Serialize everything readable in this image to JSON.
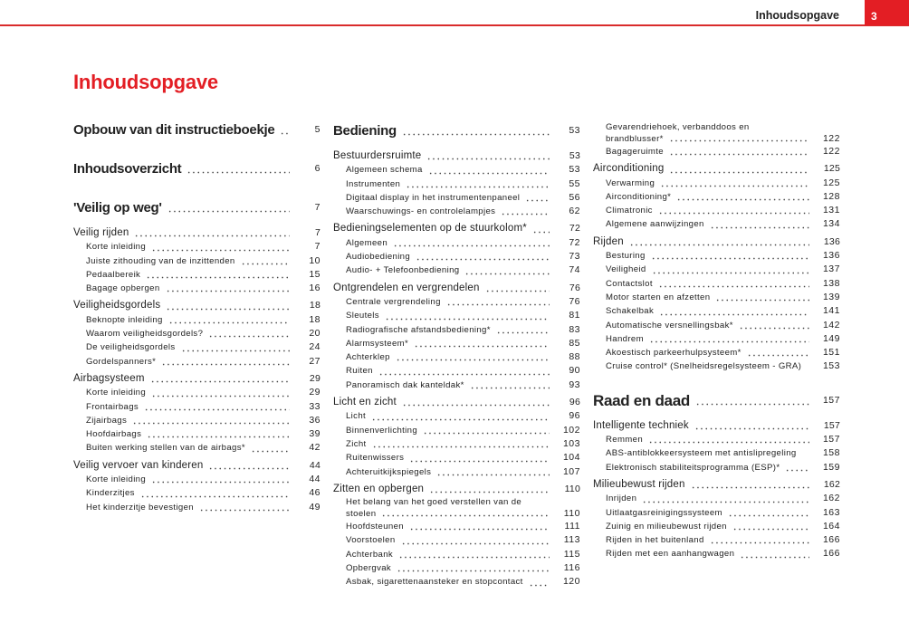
{
  "header": {
    "title": "Inhoudsopgave",
    "page_number": "3",
    "accent_color": "#e31e24"
  },
  "page_title": "Inhoudsopgave",
  "columns": [
    [
      {
        "lvl": "major",
        "t": "Opbouw van dit instructieboekje",
        "p": "5"
      },
      {
        "lvl": "major",
        "t": "Inhoudsoverzicht",
        "p": "6"
      },
      {
        "lvl": "major",
        "t": "'Veilig op weg'",
        "p": "7"
      },
      {
        "lvl": "section",
        "t": "Veilig rijden",
        "p": "7"
      },
      {
        "lvl": "item",
        "t": "Korte inleiding",
        "p": "7"
      },
      {
        "lvl": "item",
        "t": "Juiste zithouding van de inzittenden",
        "p": "10"
      },
      {
        "lvl": "item",
        "t": "Pedaalbereik",
        "p": "15"
      },
      {
        "lvl": "item",
        "t": "Bagage opbergen",
        "p": "16"
      },
      {
        "lvl": "section",
        "t": "Veiligheidsgordels",
        "p": "18"
      },
      {
        "lvl": "item",
        "t": "Beknopte inleiding",
        "p": "18"
      },
      {
        "lvl": "item",
        "t": "Waarom veiligheidsgordels?",
        "p": "20"
      },
      {
        "lvl": "item",
        "t": "De veiligheidsgordels",
        "p": "24"
      },
      {
        "lvl": "item",
        "t": "Gordelspanners*",
        "p": "27"
      },
      {
        "lvl": "section",
        "t": "Airbagsysteem",
        "p": "29"
      },
      {
        "lvl": "item",
        "t": "Korte inleiding",
        "p": "29"
      },
      {
        "lvl": "item",
        "t": "Frontairbags",
        "p": "33"
      },
      {
        "lvl": "item",
        "t": "Zijairbags",
        "p": "36"
      },
      {
        "lvl": "item",
        "t": "Hoofdairbags",
        "p": "39"
      },
      {
        "lvl": "item",
        "t": "Buiten werking stellen van de airbags*",
        "p": "42"
      },
      {
        "lvl": "section",
        "t": "Veilig vervoer van kinderen",
        "p": "44"
      },
      {
        "lvl": "item",
        "t": "Korte inleiding",
        "p": "44"
      },
      {
        "lvl": "item",
        "t": "Kinderzitjes",
        "p": "46"
      },
      {
        "lvl": "item",
        "t": "Het kinderzitje bevestigen",
        "p": "49"
      }
    ],
    [
      {
        "lvl": "major",
        "t": "Bediening",
        "p": "53"
      },
      {
        "lvl": "section",
        "t": "Bestuurdersruimte",
        "p": "53"
      },
      {
        "lvl": "item",
        "t": "Algemeen schema",
        "p": "53"
      },
      {
        "lvl": "item",
        "t": "Instrumenten",
        "p": "55"
      },
      {
        "lvl": "item",
        "t": "Digitaal display in het instrumentenpaneel",
        "p": "56"
      },
      {
        "lvl": "item",
        "t": "Waarschuwings- en controlelampjes",
        "p": "62"
      },
      {
        "lvl": "section",
        "t": "Bedieningselementen op de stuurkolom*",
        "p": "72"
      },
      {
        "lvl": "item",
        "t": "Algemeen",
        "p": "72"
      },
      {
        "lvl": "item",
        "t": "Audiobediening",
        "p": "73"
      },
      {
        "lvl": "item",
        "t": "Audio- + Telefoonbediening",
        "p": "74"
      },
      {
        "lvl": "section",
        "t": "Ontgrendelen en vergrendelen",
        "p": "76"
      },
      {
        "lvl": "item",
        "t": "Centrale vergrendeling",
        "p": "76"
      },
      {
        "lvl": "item",
        "t": "Sleutels",
        "p": "81"
      },
      {
        "lvl": "item",
        "t": "Radiografische afstandsbediening*",
        "p": "83"
      },
      {
        "lvl": "item",
        "t": "Alarmsysteem*",
        "p": "85"
      },
      {
        "lvl": "item",
        "t": "Achterklep",
        "p": "88"
      },
      {
        "lvl": "item",
        "t": "Ruiten",
        "p": "90"
      },
      {
        "lvl": "item",
        "t": "Panoramisch dak kanteldak*",
        "p": "93"
      },
      {
        "lvl": "section",
        "t": "Licht en zicht",
        "p": "96"
      },
      {
        "lvl": "item",
        "t": "Licht",
        "p": "96"
      },
      {
        "lvl": "item",
        "t": "Binnenverlichting",
        "p": "102"
      },
      {
        "lvl": "item",
        "t": "Zicht",
        "p": "103"
      },
      {
        "lvl": "item",
        "t": "Ruitenwissers",
        "p": "104"
      },
      {
        "lvl": "item",
        "t": "Achteruitkijkspiegels",
        "p": "107"
      },
      {
        "lvl": "section",
        "t": "Zitten en opbergen",
        "p": "110"
      },
      {
        "lvl": "item",
        "pre": "Het belang van het goed verstellen van de",
        "t": "stoelen",
        "p": "110"
      },
      {
        "lvl": "item",
        "t": "Hoofdsteunen",
        "p": "111"
      },
      {
        "lvl": "item",
        "t": "Voorstoelen",
        "p": "113"
      },
      {
        "lvl": "item",
        "t": "Achterbank",
        "p": "115"
      },
      {
        "lvl": "item",
        "t": "Opbergvak",
        "p": "116"
      },
      {
        "lvl": "item",
        "t": "Asbak, sigarettenaansteker en stopcontact",
        "p": "120"
      }
    ],
    [
      {
        "lvl": "item",
        "pre": "Gevarendriehoek, verbanddoos en",
        "t": "brandblusser*",
        "p": "122"
      },
      {
        "lvl": "item",
        "t": "Bagageruimte",
        "p": "122"
      },
      {
        "lvl": "section",
        "t": "Airconditioning",
        "p": "125"
      },
      {
        "lvl": "item",
        "t": "Verwarming",
        "p": "125"
      },
      {
        "lvl": "item",
        "t": "Airconditioning*",
        "p": "128"
      },
      {
        "lvl": "item",
        "t": "Climatronic",
        "p": "131"
      },
      {
        "lvl": "item",
        "t": "Algemene aanwijzingen",
        "p": "134"
      },
      {
        "lvl": "section",
        "t": "Rijden",
        "p": "136"
      },
      {
        "lvl": "item",
        "t": "Besturing",
        "p": "136"
      },
      {
        "lvl": "item",
        "t": "Veiligheid",
        "p": "137"
      },
      {
        "lvl": "item",
        "t": "Contactslot",
        "p": "138"
      },
      {
        "lvl": "item",
        "t": "Motor starten en afzetten",
        "p": "139"
      },
      {
        "lvl": "item",
        "t": "Schakelbak",
        "p": "141"
      },
      {
        "lvl": "item",
        "t": "Automatische versnellingsbak*",
        "p": "142"
      },
      {
        "lvl": "item",
        "t": "Handrem",
        "p": "149"
      },
      {
        "lvl": "item",
        "t": "Akoestisch parkeerhulpsysteem*",
        "p": "151"
      },
      {
        "lvl": "item",
        "t": "Cruise control* (Snelheidsregelsysteem - GRA)",
        "p": "153",
        "noleader": true
      },
      {
        "lvl": "major",
        "t": "Raad en daad",
        "p": "157"
      },
      {
        "lvl": "section",
        "t": "Intelligente techniek",
        "p": "157"
      },
      {
        "lvl": "item",
        "t": "Remmen",
        "p": "157"
      },
      {
        "lvl": "item",
        "t": "ABS-antiblokkeersysteem met antislipregeling",
        "p": "158",
        "noleader": true
      },
      {
        "lvl": "item",
        "t": "Elektronisch stabiliteitsprogramma (ESP)*",
        "p": "159"
      },
      {
        "lvl": "section",
        "t": "Milieubewust rijden",
        "p": "162"
      },
      {
        "lvl": "item",
        "t": "Inrijden",
        "p": "162"
      },
      {
        "lvl": "item",
        "t": "Uitlaatgasreinigingssysteem",
        "p": "163"
      },
      {
        "lvl": "item",
        "t": "Zuinig en milieubewust rijden",
        "p": "164"
      },
      {
        "lvl": "item",
        "t": "Rijden in het buitenland",
        "p": "166"
      },
      {
        "lvl": "item",
        "t": "Rijden met een aanhangwagen",
        "p": "166"
      }
    ]
  ]
}
